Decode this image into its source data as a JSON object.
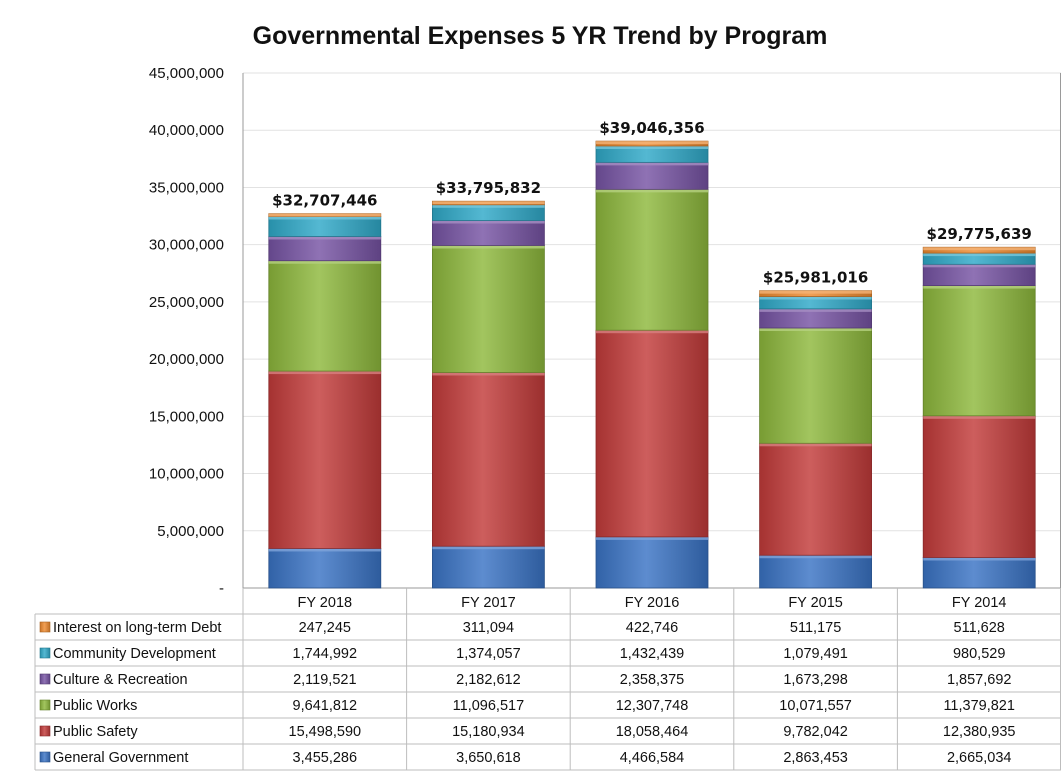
{
  "chart_data": {
    "type": "bar",
    "stacked": true,
    "title": "Governmental Expenses 5 YR Trend by Program",
    "categories": [
      "FY 2018",
      "FY 2017",
      "FY 2016",
      "FY 2015",
      "FY 2014"
    ],
    "ylim": [
      0,
      45000000
    ],
    "yticks": [
      {
        "value": 0,
        "label": "-"
      },
      {
        "value": 5000000,
        "label": "5,000,000"
      },
      {
        "value": 10000000,
        "label": "10,000,000"
      },
      {
        "value": 15000000,
        "label": "15,000,000"
      },
      {
        "value": 20000000,
        "label": "20,000,000"
      },
      {
        "value": 25000000,
        "label": "25,000,000"
      },
      {
        "value": 30000000,
        "label": "30,000,000"
      },
      {
        "value": 35000000,
        "label": "35,000,000"
      },
      {
        "value": 40000000,
        "label": "40,000,000"
      },
      {
        "value": 45000000,
        "label": "45,000,000"
      }
    ],
    "grid": true,
    "legend": "data-table",
    "totals": [
      "$32,707,446",
      "$33,795,832",
      "$39,046,356",
      "$25,981,016",
      "$29,775,639"
    ],
    "series": [
      {
        "name": "General Government",
        "color": "#3a73c4",
        "values": [
          3455286,
          3650618,
          4466584,
          2863453,
          2665034
        ],
        "labels": [
          "3,455,286",
          "3,650,618",
          "4,466,584",
          "2,863,453",
          "2,665,034"
        ]
      },
      {
        "name": "Public Safety",
        "color": "#c23b3a",
        "values": [
          15498590,
          15180934,
          18058464,
          9782042,
          12380935
        ],
        "labels": [
          "15,498,590",
          "15,180,934",
          "18,058,464",
          "9,782,042",
          "12,380,935"
        ]
      },
      {
        "name": "Public Works",
        "color": "#8db83c",
        "values": [
          9641812,
          11096517,
          12307748,
          10071557,
          11379821
        ],
        "labels": [
          "9,641,812",
          "11,096,517",
          "12,307,748",
          "10,071,557",
          "11,379,821"
        ]
      },
      {
        "name": "Culture & Recreation",
        "color": "#7653a3",
        "values": [
          2119521,
          2182612,
          2358375,
          1673298,
          1857692
        ],
        "labels": [
          "2,119,521",
          "2,182,612",
          "2,358,375",
          "1,673,298",
          "1,857,692"
        ]
      },
      {
        "name": "Community Development",
        "color": "#2fa9c8",
        "values": [
          1744992,
          1374057,
          1432439,
          1079491,
          980529
        ],
        "labels": [
          "1,744,992",
          "1,374,057",
          "1,432,439",
          "1,079,491",
          "980,529"
        ]
      },
      {
        "name": "Interest on long-term Debt",
        "color": "#ee8a2e",
        "values": [
          247245,
          311094,
          422746,
          511175,
          511628
        ],
        "labels": [
          "247,245",
          "311,094",
          "422,746",
          "511,175",
          "511,628"
        ]
      }
    ]
  }
}
